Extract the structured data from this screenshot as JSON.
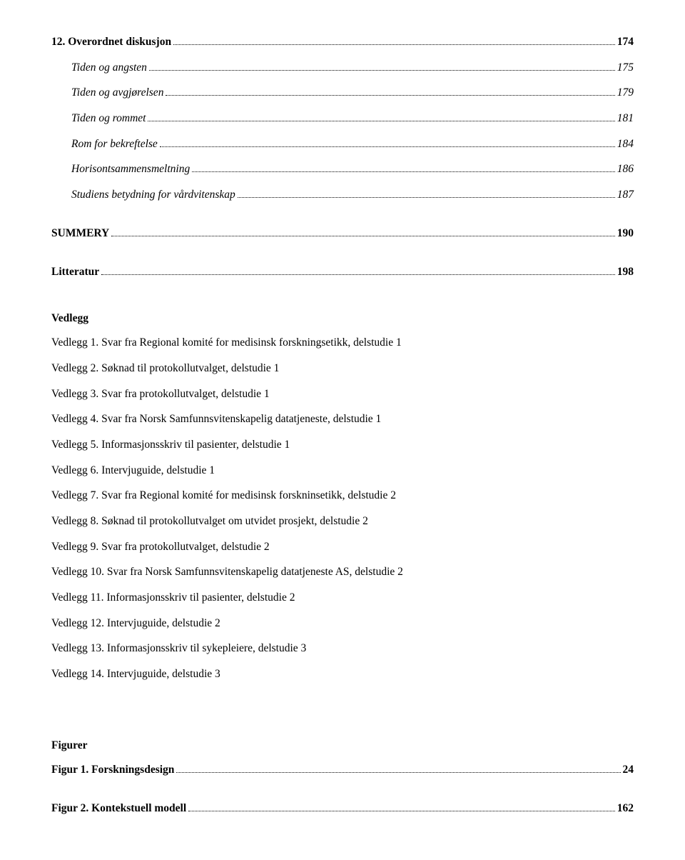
{
  "toc": [
    {
      "text": "12. Overordnet diskusjon",
      "page": "174",
      "bold": true,
      "italic": false,
      "indent": false
    },
    {
      "text": "Tiden og angsten",
      "page": "175",
      "bold": false,
      "italic": true,
      "indent": true
    },
    {
      "text": "Tiden og avgjørelsen",
      "page": "179",
      "bold": false,
      "italic": true,
      "indent": true
    },
    {
      "text": "Tiden og rommet",
      "page": "181",
      "bold": false,
      "italic": true,
      "indent": true
    },
    {
      "text": "Rom for bekreftelse",
      "page": "184",
      "bold": false,
      "italic": true,
      "indent": true
    },
    {
      "text": "Horisontsammensmeltning",
      "page": "186",
      "bold": false,
      "italic": true,
      "indent": true
    },
    {
      "text": "Studiens betydning for vårdvitenskap",
      "page": "187",
      "bold": false,
      "italic": true,
      "indent": true
    },
    {
      "text": "SUMMERY",
      "page": "190",
      "bold": true,
      "italic": false,
      "indent": false,
      "gap": "md"
    },
    {
      "text": "Litteratur",
      "page": "198",
      "bold": true,
      "italic": false,
      "indent": false,
      "gap": "md"
    }
  ],
  "vedlegg_heading": "Vedlegg",
  "vedlegg": [
    "Vedlegg 1. Svar fra Regional komité for medisinsk forskningsetikk, delstudie 1",
    "Vedlegg 2. Søknad til protokollutvalget, delstudie 1",
    "Vedlegg 3. Svar fra protokollutvalget, delstudie 1",
    "Vedlegg 4. Svar fra Norsk Samfunnsvitenskapelig datatjeneste, delstudie 1",
    "Vedlegg 5. Informasjonsskriv til pasienter, delstudie 1",
    "Vedlegg 6. Intervjuguide, delstudie 1",
    "Vedlegg 7. Svar fra Regional komité for medisinsk forskninsetikk, delstudie 2",
    "Vedlegg 8. Søknad til protokollutvalget om utvidet prosjekt, delstudie 2",
    "Vedlegg 9. Svar fra protokollutvalget, delstudie 2",
    "Vedlegg 10. Svar fra Norsk Samfunnsvitenskapelig datatjeneste AS, delstudie 2",
    "Vedlegg 11. Informasjonsskriv til pasienter, delstudie 2",
    "Vedlegg 12. Intervjuguide, delstudie 2",
    "Vedlegg 13. Informasjonsskriv til sykepleiere, delstudie 3",
    "Vedlegg 14. Intervjuguide, delstudie 3"
  ],
  "figurer_heading": "Figurer",
  "figurer": [
    {
      "text": "Figur 1. Forskningsdesign",
      "page": "24"
    },
    {
      "text": "Figur 2. Kontekstuell modell",
      "page": "162"
    }
  ]
}
